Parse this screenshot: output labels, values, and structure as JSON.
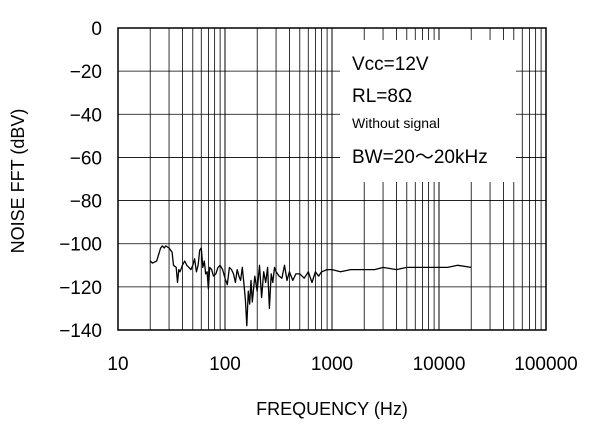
{
  "chart_data": {
    "type": "line",
    "xlabel": "FREQUENCY (Hz)",
    "ylabel": "NOISE FFT (dBV)",
    "x_scale": "log",
    "xlim": [
      10,
      100000
    ],
    "ylim": [
      -140,
      0
    ],
    "x_ticks": [
      "10",
      "100",
      "1000",
      "10000",
      "100000"
    ],
    "y_ticks": [
      "0",
      "−20",
      "−40",
      "−60",
      "−80",
      "−100",
      "−120",
      "−140"
    ],
    "grid": true,
    "annotations": [
      "Vcc=12V",
      "RL=8Ω",
      "Without signal",
      "BW=20〜20kHz"
    ],
    "series": [
      {
        "x": [
          20,
          21,
          23,
          25,
          26,
          27,
          28,
          30,
          32,
          33,
          35,
          36,
          37,
          38,
          40,
          42,
          44,
          46,
          48,
          50,
          52,
          54,
          56,
          58,
          60,
          62,
          64,
          66,
          68,
          70,
          72,
          75,
          78,
          82,
          86,
          90,
          95,
          100,
          105,
          110,
          115,
          120,
          125,
          130,
          135,
          140,
          145,
          150,
          155,
          160,
          165,
          170,
          175,
          180,
          190,
          200,
          210,
          220,
          230,
          240,
          250,
          260,
          270,
          280,
          290,
          300,
          320,
          340,
          360,
          380,
          400,
          430,
          460,
          500,
          550,
          600,
          650,
          700,
          750,
          800,
          900,
          1000,
          1200,
          1500,
          2000,
          2500,
          3000,
          4000,
          5000,
          6000,
          7000,
          8000,
          10000,
          12000,
          15000,
          20000
        ],
        "y": [
          -108,
          -109,
          -108,
          -102,
          -101,
          -102,
          -101,
          -102,
          -104,
          -110,
          -111,
          -118,
          -112,
          -113,
          -110,
          -108,
          -110,
          -111,
          -112,
          -110,
          -107,
          -113,
          -110,
          -103,
          -102,
          -111,
          -108,
          -114,
          -113,
          -121,
          -111,
          -112,
          -115,
          -114,
          -111,
          -110,
          -112,
          -116,
          -119,
          -111,
          -112,
          -114,
          -118,
          -112,
          -115,
          -117,
          -111,
          -118,
          -126,
          -138,
          -122,
          -128,
          -117,
          -127,
          -115,
          -122,
          -110,
          -125,
          -113,
          -118,
          -111,
          -130,
          -114,
          -118,
          -111,
          -113,
          -115,
          -116,
          -110,
          -117,
          -113,
          -117,
          -114,
          -114,
          -116,
          -113,
          -118,
          -113,
          -115,
          -113,
          -112,
          -112,
          -113,
          -112,
          -112,
          -112,
          -111,
          -112,
          -111,
          -111,
          -111,
          -111,
          -111,
          -111,
          -110,
          -111
        ]
      }
    ]
  }
}
